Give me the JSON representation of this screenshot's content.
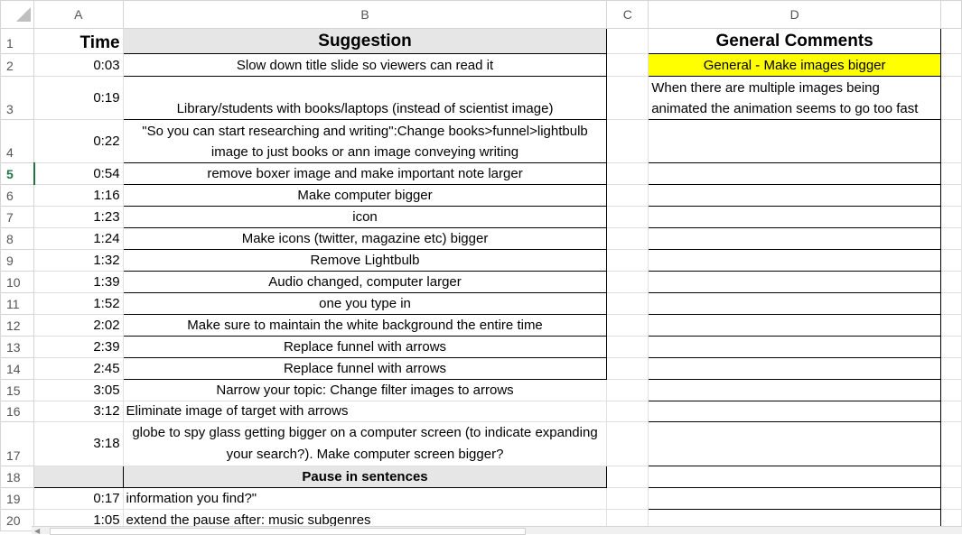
{
  "columns": [
    "A",
    "B",
    "C",
    "D"
  ],
  "rows": [
    {
      "n": "1",
      "time": "Time",
      "suggestion": "Suggestion",
      "comment": "General Comments"
    },
    {
      "n": "2",
      "time": "0:03",
      "suggestion": "Slow down title slide so viewers can read it",
      "comment": "General - Make images bigger"
    },
    {
      "n": "3",
      "time": "0:19",
      "suggestion": "Library/students with books/laptops (instead of scientist image)",
      "comment": "When there are multiple images being animated the animation seems to go too fast"
    },
    {
      "n": "4",
      "time": "0:22",
      "suggestion": "\"So you can start researching and writing\":Change books>funnel>lightbulb image to just books or ann image conveying writing",
      "comment": ""
    },
    {
      "n": "5",
      "time": "0:54",
      "suggestion": "remove boxer image and make important note larger",
      "comment": ""
    },
    {
      "n": "6",
      "time": "1:16",
      "suggestion": "Make computer bigger",
      "comment": ""
    },
    {
      "n": "7",
      "time": "1:23",
      "suggestion": "icon",
      "comment": ""
    },
    {
      "n": "8",
      "time": "1:24",
      "suggestion": "Make icons (twitter, magazine etc) bigger",
      "comment": ""
    },
    {
      "n": "9",
      "time": "1:32",
      "suggestion": "Remove Lightbulb",
      "comment": ""
    },
    {
      "n": "10",
      "time": "1:39",
      "suggestion": "Audio changed, computer larger",
      "comment": ""
    },
    {
      "n": "11",
      "time": "1:52",
      "suggestion": "one you type in",
      "comment": ""
    },
    {
      "n": "12",
      "time": "2:02",
      "suggestion": "Make sure to maintain the white background the entire time",
      "comment": ""
    },
    {
      "n": "13",
      "time": "2:39",
      "suggestion": "Replace funnel with arrows",
      "comment": ""
    },
    {
      "n": "14",
      "time": "2:45",
      "suggestion": "Replace funnel with arrows",
      "comment": ""
    },
    {
      "n": "15",
      "time": "3:05",
      "suggestion": "Narrow your topic:   Change filter images to arrows",
      "comment": ""
    },
    {
      "n": "16",
      "time": "3:12",
      "suggestion": "Eliminate image of target with arrows",
      "comment": ""
    },
    {
      "n": "17",
      "time": "3:18",
      "suggestion": "globe to  spy glass getting bigger on a computer screen (to indicate expanding your search?). Make computer screen bigger?",
      "comment": ""
    },
    {
      "n": "18",
      "time": "",
      "suggestion": "Pause in sentences",
      "comment": ""
    },
    {
      "n": "19",
      "time": "0:17",
      "suggestion": "information you find?\"",
      "comment": ""
    },
    {
      "n": "20",
      "time": "1:05",
      "suggestion": "extend the pause after: music subgenres",
      "comment": ""
    }
  ],
  "selected_row": "5",
  "colors": {
    "header_fill": "#e7e6e6",
    "highlight": "#ffff00",
    "select": "#217346"
  }
}
